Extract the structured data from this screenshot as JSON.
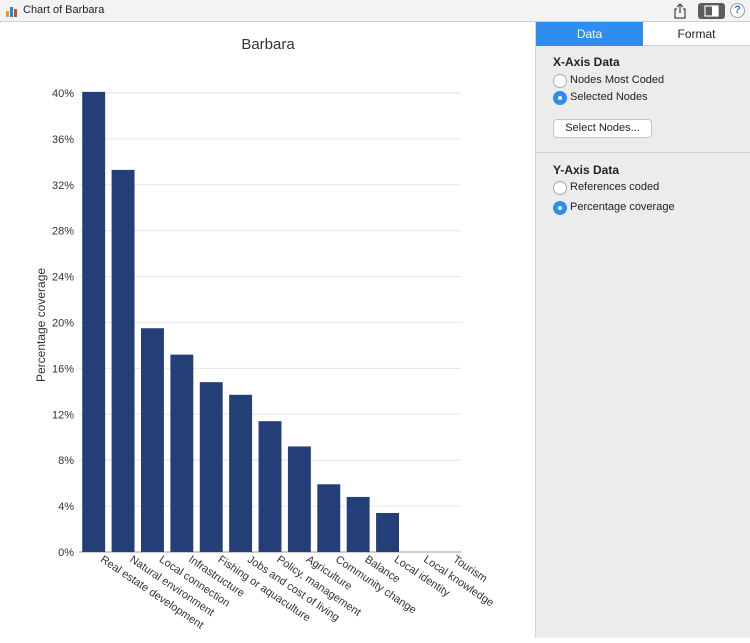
{
  "window": {
    "title": "Chart of Barbara"
  },
  "toolbar": {
    "help_label": "?"
  },
  "panel": {
    "tabs": [
      {
        "label": "Data",
        "active": true
      },
      {
        "label": "Format",
        "active": false
      }
    ],
    "x_axis": {
      "title": "X-Axis Data",
      "options": [
        {
          "label": "Nodes Most Coded",
          "selected": false
        },
        {
          "label": "Selected Nodes",
          "selected": true
        }
      ],
      "select_button": "Select Nodes..."
    },
    "y_axis": {
      "title": "Y-Axis Data",
      "options": [
        {
          "label": "References coded",
          "selected": false
        },
        {
          "label": "Percentage coverage",
          "selected": true
        }
      ]
    }
  },
  "chart_data": {
    "type": "bar",
    "title": "Barbara",
    "xlabel": "",
    "ylabel": "Percentage coverage",
    "ylim": [
      0,
      40
    ],
    "yticks": [
      0,
      4,
      8,
      12,
      16,
      20,
      24,
      28,
      32,
      36,
      40
    ],
    "ytick_labels": [
      "0%",
      "4%",
      "8%",
      "12%",
      "16%",
      "20%",
      "24%",
      "28%",
      "32%",
      "36%",
      "40%"
    ],
    "grid": true,
    "bar_color": "#243f77",
    "categories": [
      "Real estate development",
      "Natural environment",
      "Local connection",
      "Infrastructure",
      "Fishing or aquaculture",
      "Jobs and cost of living",
      "Policy, management",
      "Agriculture",
      "Community change",
      "Balance",
      "Local identity",
      "Local knowledge",
      "Tourism"
    ],
    "values": [
      40.1,
      33.3,
      19.5,
      17.2,
      14.8,
      13.7,
      11.4,
      9.2,
      5.9,
      4.8,
      3.4,
      0,
      0
    ]
  }
}
